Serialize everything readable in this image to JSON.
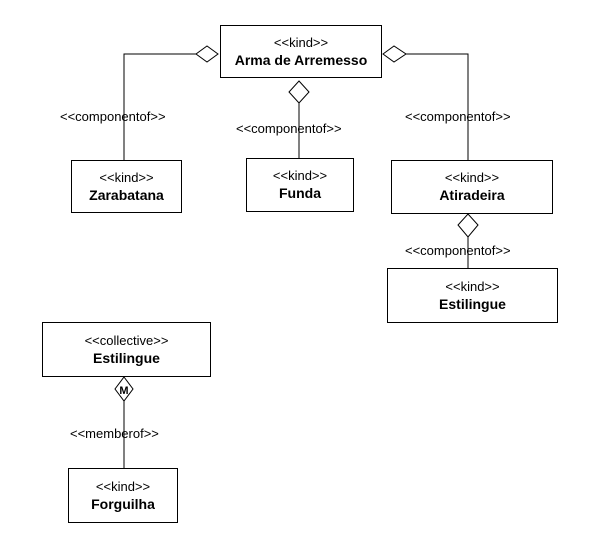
{
  "classes": {
    "arma": {
      "stereotype": "<<kind>>",
      "name": "Arma de Arremesso"
    },
    "zarabatana": {
      "stereotype": "<<kind>>",
      "name": "Zarabatana"
    },
    "funda": {
      "stereotype": "<<kind>>",
      "name": "Funda"
    },
    "atiradeira": {
      "stereotype": "<<kind>>",
      "name": "Atiradeira"
    },
    "estilingue_kind": {
      "stereotype": "<<kind>>",
      "name": "Estilingue"
    },
    "estilingue_collective": {
      "stereotype": "<<collective>>",
      "name": "Estilingue"
    },
    "forguilha": {
      "stereotype": "<<kind>>",
      "name": "Forguilha"
    }
  },
  "relations": {
    "componentof": "<<componentof>>",
    "memberof": "<<memberof>>",
    "member_marker": "M"
  }
}
